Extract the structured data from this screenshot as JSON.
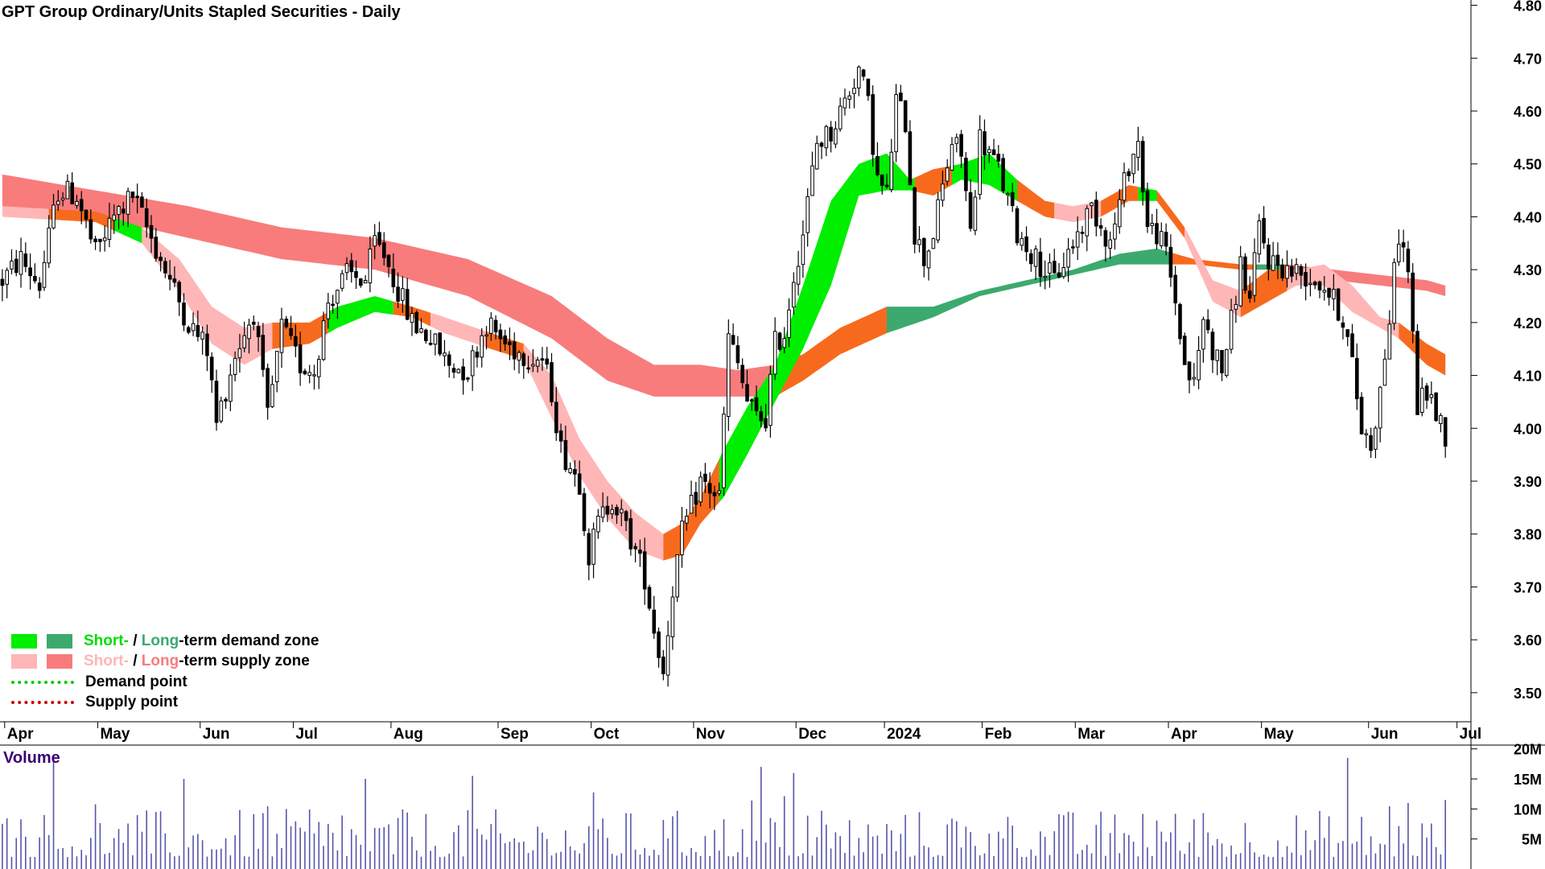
{
  "chart_data": {
    "type": "candlestick",
    "title": "GPT Group Ordinary/Units Stapled Securities - Daily",
    "price_axis": {
      "ticks": [
        "3.50",
        "3.60",
        "3.70",
        "3.80",
        "3.90",
        "4.00",
        "4.10",
        "4.20",
        "4.30",
        "4.40",
        "4.50",
        "4.60",
        "4.70",
        "4.80"
      ],
      "ylim": [
        3.445,
        4.81
      ]
    },
    "x_axis": {
      "ticks": [
        {
          "label": "Apr",
          "idx": 1
        },
        {
          "label": "May",
          "idx": 21
        },
        {
          "label": "Jun",
          "idx": 43
        },
        {
          "label": "Jul",
          "idx": 63
        },
        {
          "label": "Aug",
          "idx": 84
        },
        {
          "label": "Sep",
          "idx": 107
        },
        {
          "label": "Oct",
          "idx": 127
        },
        {
          "label": "Nov",
          "idx": 149
        },
        {
          "label": "Dec",
          "idx": 171
        },
        {
          "label": "2024",
          "idx": 190
        },
        {
          "label": "Feb",
          "idx": 211
        },
        {
          "label": "Mar",
          "idx": 231
        },
        {
          "label": "Apr",
          "idx": 251
        },
        {
          "label": "May",
          "idx": 271
        },
        {
          "label": "Jun",
          "idx": 294
        },
        {
          "label": "Jul",
          "idx": 313
        }
      ],
      "n_bars": 316
    },
    "price_path": [
      [
        0,
        4.28
      ],
      [
        4,
        4.32
      ],
      [
        8,
        4.27
      ],
      [
        12,
        4.45
      ],
      [
        16,
        4.44
      ],
      [
        20,
        4.33
      ],
      [
        24,
        4.4
      ],
      [
        28,
        4.44
      ],
      [
        32,
        4.36
      ],
      [
        36,
        4.28
      ],
      [
        40,
        4.2
      ],
      [
        44,
        4.15
      ],
      [
        46,
        4.01
      ],
      [
        50,
        4.14
      ],
      [
        54,
        4.22
      ],
      [
        57,
        4.02
      ],
      [
        60,
        4.19
      ],
      [
        64,
        4.12
      ],
      [
        67,
        4.11
      ],
      [
        70,
        4.24
      ],
      [
        74,
        4.29
      ],
      [
        78,
        4.28
      ],
      [
        80,
        4.35
      ],
      [
        82,
        4.33
      ],
      [
        86,
        4.24
      ],
      [
        88,
        4.2
      ],
      [
        92,
        4.17
      ],
      [
        96,
        4.12
      ],
      [
        100,
        4.11
      ],
      [
        104,
        4.2
      ],
      [
        108,
        4.16
      ],
      [
        112,
        4.14
      ],
      [
        116,
        4.13
      ],
      [
        118,
        4.07
      ],
      [
        120,
        3.96
      ],
      [
        124,
        3.9
      ],
      [
        126,
        3.76
      ],
      [
        128,
        3.82
      ],
      [
        131,
        3.87
      ],
      [
        135,
        3.79
      ],
      [
        138,
        3.72
      ],
      [
        140,
        3.62
      ],
      [
        142,
        3.54
      ],
      [
        144,
        3.7
      ],
      [
        146,
        3.8
      ],
      [
        150,
        3.9
      ],
      [
        154,
        3.87
      ],
      [
        156,
        4.17
      ],
      [
        158,
        4.12
      ],
      [
        160,
        4.05
      ],
      [
        162,
        4.02
      ],
      [
        164,
        4.02
      ],
      [
        166,
        4.16
      ],
      [
        168,
        4.18
      ],
      [
        170,
        4.29
      ],
      [
        172,
        4.37
      ],
      [
        175,
        4.54
      ],
      [
        178,
        4.56
      ],
      [
        182,
        4.64
      ],
      [
        184,
        4.68
      ],
      [
        186,
        4.61
      ],
      [
        188,
        4.47
      ],
      [
        190,
        4.44
      ],
      [
        192,
        4.62
      ],
      [
        194,
        4.58
      ],
      [
        196,
        4.37
      ],
      [
        198,
        4.32
      ],
      [
        200,
        4.37
      ],
      [
        204,
        4.54
      ],
      [
        206,
        4.52
      ],
      [
        208,
        4.37
      ],
      [
        210,
        4.55
      ],
      [
        214,
        4.49
      ],
      [
        218,
        4.37
      ],
      [
        222,
        4.32
      ],
      [
        226,
        4.28
      ],
      [
        230,
        4.35
      ],
      [
        234,
        4.42
      ],
      [
        238,
        4.35
      ],
      [
        242,
        4.5
      ],
      [
        244,
        4.54
      ],
      [
        246,
        4.38
      ],
      [
        248,
        4.37
      ],
      [
        250,
        4.33
      ],
      [
        252,
        4.24
      ],
      [
        254,
        4.12
      ],
      [
        256,
        4.08
      ],
      [
        258,
        4.21
      ],
      [
        260,
        4.15
      ],
      [
        262,
        4.11
      ],
      [
        264,
        4.2
      ],
      [
        266,
        4.31
      ],
      [
        268,
        4.24
      ],
      [
        270,
        4.38
      ],
      [
        272,
        4.32
      ],
      [
        276,
        4.3
      ],
      [
        280,
        4.29
      ],
      [
        284,
        4.27
      ],
      [
        288,
        4.21
      ],
      [
        290,
        4.12
      ],
      [
        292,
        4.0
      ],
      [
        294,
        3.97
      ],
      [
        296,
        4.07
      ],
      [
        298,
        4.21
      ],
      [
        300,
        4.37
      ],
      [
        302,
        4.3
      ],
      [
        304,
        4.04
      ],
      [
        306,
        4.07
      ],
      [
        310,
        3.99
      ]
    ],
    "short_supply_band": [
      [
        0,
        4.42,
        4.4
      ],
      [
        20,
        4.41,
        4.39
      ],
      [
        30,
        4.38,
        4.35
      ],
      [
        38,
        4.32,
        4.26
      ],
      [
        45,
        4.23,
        4.16
      ],
      [
        52,
        4.19,
        4.12
      ],
      [
        58,
        4.2,
        4.15
      ],
      [
        66,
        4.2,
        4.16
      ],
      [
        72,
        4.23,
        4.19
      ],
      [
        80,
        4.25,
        4.22
      ],
      [
        88,
        4.23,
        4.21
      ],
      [
        95,
        4.21,
        4.18
      ],
      [
        105,
        4.18,
        4.15
      ],
      [
        112,
        4.16,
        4.13
      ],
      [
        118,
        4.1,
        4.02
      ],
      [
        124,
        3.98,
        3.91
      ],
      [
        130,
        3.9,
        3.83
      ],
      [
        136,
        3.84,
        3.77
      ],
      [
        142,
        3.8,
        3.75
      ],
      [
        146,
        3.82,
        3.76
      ],
      [
        150,
        3.87,
        3.82
      ],
      [
        155,
        3.96,
        3.87
      ],
      [
        160,
        4.04,
        3.95
      ],
      [
        166,
        4.12,
        4.05
      ],
      [
        172,
        4.27,
        4.15
      ],
      [
        178,
        4.43,
        4.27
      ],
      [
        184,
        4.5,
        4.44
      ],
      [
        190,
        4.52,
        4.45
      ],
      [
        195,
        4.47,
        4.45
      ],
      [
        200,
        4.49,
        4.44
      ],
      [
        206,
        4.5,
        4.47
      ],
      [
        212,
        4.52,
        4.46
      ],
      [
        218,
        4.47,
        4.43
      ],
      [
        224,
        4.43,
        4.4
      ],
      [
        230,
        4.42,
        4.39
      ],
      [
        236,
        4.43,
        4.4
      ],
      [
        242,
        4.46,
        4.43
      ],
      [
        248,
        4.45,
        4.43
      ],
      [
        254,
        4.38,
        4.36
      ],
      [
        260,
        4.28,
        4.24
      ],
      [
        266,
        4.26,
        4.21
      ],
      [
        272,
        4.3,
        4.24
      ],
      [
        278,
        4.3,
        4.27
      ],
      [
        284,
        4.31,
        4.27
      ],
      [
        290,
        4.27,
        4.22
      ],
      [
        296,
        4.21,
        4.19
      ],
      [
        300,
        4.2,
        4.17
      ],
      [
        306,
        4.16,
        4.12
      ],
      [
        310,
        4.14,
        4.1
      ]
    ],
    "long_supply_band": [
      [
        0,
        4.48,
        4.42
      ],
      [
        20,
        4.45,
        4.4
      ],
      [
        40,
        4.42,
        4.36
      ],
      [
        60,
        4.38,
        4.32
      ],
      [
        80,
        4.36,
        4.3
      ],
      [
        100,
        4.32,
        4.25
      ],
      [
        118,
        4.25,
        4.17
      ],
      [
        130,
        4.17,
        4.09
      ],
      [
        140,
        4.12,
        4.06
      ],
      [
        150,
        4.12,
        4.06
      ],
      [
        158,
        4.11,
        4.06
      ],
      [
        166,
        4.12,
        4.06
      ],
      [
        172,
        4.14,
        4.09
      ],
      [
        180,
        4.19,
        4.14
      ],
      [
        190,
        4.23,
        4.18
      ],
      [
        200,
        4.23,
        4.21
      ],
      [
        210,
        4.26,
        4.25
      ],
      [
        220,
        4.28,
        4.27
      ],
      [
        230,
        4.3,
        4.29
      ],
      [
        240,
        4.33,
        4.31
      ],
      [
        248,
        4.34,
        4.31
      ],
      [
        256,
        4.32,
        4.31
      ],
      [
        266,
        4.31,
        4.3
      ],
      [
        276,
        4.31,
        4.3
      ],
      [
        286,
        4.3,
        4.28
      ],
      [
        296,
        4.29,
        4.27
      ],
      [
        306,
        4.28,
        4.26
      ],
      [
        310,
        4.27,
        4.25
      ]
    ],
    "volume_axis": {
      "ticks": [
        "5M",
        "10M",
        "15M",
        "20M"
      ],
      "ylim": [
        0,
        20.5
      ]
    },
    "volume_spikes": [
      [
        11,
        18.0
      ],
      [
        39,
        15.0
      ],
      [
        78,
        15.0
      ],
      [
        101,
        15.5
      ],
      [
        163,
        17.0
      ],
      [
        170,
        16.0
      ],
      [
        289,
        18.5
      ],
      [
        302,
        11.0
      ],
      [
        310,
        11.5
      ]
    ]
  },
  "panel_labels": {
    "volume": "Volume"
  },
  "legend": {
    "demand_zone": {
      "short": "Short-",
      "sep": " / ",
      "long": "Long",
      "rest": "-term demand zone"
    },
    "supply_zone": {
      "short": "Short-",
      "sep": " / ",
      "long": "Long",
      "rest": "-term supply zone"
    },
    "demand_point": "Demand point",
    "supply_point": "Supply point"
  },
  "colors": {
    "short_demand": "#00ee00",
    "long_demand": "#3caa6e",
    "short_supply": "#ffb6b6",
    "long_supply": "#f87c7c",
    "transition": "#f76a1e",
    "demand_point": "#00cc00",
    "supply_point": "#cc0000",
    "volume_bar": "#5555aa",
    "label_purple": "#3a0070"
  }
}
